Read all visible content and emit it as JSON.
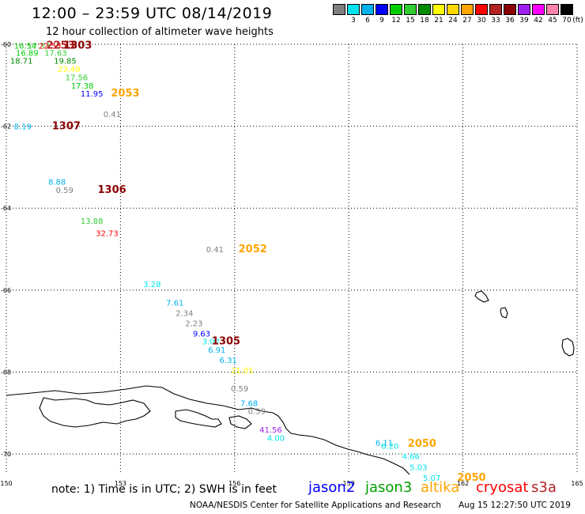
{
  "header": {
    "title": "12:00 – 23:59 UTC 08/14/2019",
    "subtitle": "12 hour collection of altimeter wave heights"
  },
  "legend": {
    "unit": "(ft)",
    "bins": [
      {
        "color": "#7f7f7f",
        "label": ""
      },
      {
        "color": "#00e5ee",
        "label": "3"
      },
      {
        "color": "#00b2ee",
        "label": "6"
      },
      {
        "color": "#0000ff",
        "label": "9"
      },
      {
        "color": "#00cd00",
        "label": "12"
      },
      {
        "color": "#32cd32",
        "label": "15"
      },
      {
        "color": "#008b00",
        "label": "18"
      },
      {
        "color": "#ffff00",
        "label": "21"
      },
      {
        "color": "#ffd700",
        "label": "24"
      },
      {
        "color": "#ffa500",
        "label": "27"
      },
      {
        "color": "#ff0000",
        "label": "30"
      },
      {
        "color": "#b22222",
        "label": "33"
      },
      {
        "color": "#8b0000",
        "label": "36"
      },
      {
        "color": "#a020f0",
        "label": "39"
      },
      {
        "color": "#ff00ff",
        "label": "42"
      },
      {
        "color": "#ff82ab",
        "label": "45"
      },
      {
        "color": "#000000",
        "label": "70"
      }
    ]
  },
  "axes": {
    "lon_labels": [
      "150",
      "153",
      "156",
      "159",
      "162",
      "165"
    ],
    "lat_labels": [
      "-60",
      "-62",
      "-64",
      "-66",
      "-68",
      "-70"
    ]
  },
  "wave_labels": [
    {
      "lon": 150.2,
      "lat": -60.03,
      "text": "16.54",
      "color": "#00cd00"
    },
    {
      "lon": 150.55,
      "lat": -60.03,
      "text": "17.33",
      "color": "#32cd32"
    },
    {
      "lon": 150.85,
      "lat": -60.03,
      "text": "22.53",
      "color": "#ff0000"
    },
    {
      "lon": 151.05,
      "lat": -60.03,
      "text": "2253",
      "color": "#b22222",
      "size": 13,
      "bold": true
    },
    {
      "lon": 151.5,
      "lat": -60.03,
      "text": "1303",
      "color": "#8b0000",
      "size": 13,
      "bold": true
    },
    {
      "lon": 150.25,
      "lat": -60.2,
      "text": "16.89",
      "color": "#00cd00"
    },
    {
      "lon": 151.0,
      "lat": -60.2,
      "text": "17.63",
      "color": "#32cd32"
    },
    {
      "lon": 150.1,
      "lat": -60.4,
      "text": "18.71",
      "color": "#008b00"
    },
    {
      "lon": 151.25,
      "lat": -60.4,
      "text": "19.85",
      "color": "#008b00"
    },
    {
      "lon": 151.35,
      "lat": -60.6,
      "text": "23.49",
      "color": "#ffff00"
    },
    {
      "lon": 151.55,
      "lat": -60.8,
      "text": "17.56",
      "color": "#32cd32"
    },
    {
      "lon": 151.7,
      "lat": -61.0,
      "text": "17.38",
      "color": "#00cd00"
    },
    {
      "lon": 151.95,
      "lat": -61.2,
      "text": "11.95",
      "color": "#0000ff"
    },
    {
      "lon": 152.75,
      "lat": -61.2,
      "text": "2053",
      "color": "#ffa500",
      "size": 13,
      "bold": true
    },
    {
      "lon": 152.55,
      "lat": -61.7,
      "text": "0.41",
      "color": "#7f7f7f"
    },
    {
      "lon": 150.2,
      "lat": -62.0,
      "text": "8.19",
      "color": "#00b2ee"
    },
    {
      "lon": 151.2,
      "lat": -62.0,
      "text": "1307",
      "color": "#8b0000",
      "size": 13,
      "bold": true
    },
    {
      "lon": 151.1,
      "lat": -63.35,
      "text": "8.88",
      "color": "#00b2ee"
    },
    {
      "lon": 151.3,
      "lat": -63.55,
      "text": "0.59",
      "color": "#7f7f7f"
    },
    {
      "lon": 152.4,
      "lat": -63.55,
      "text": "1306",
      "color": "#8b0000",
      "size": 13,
      "bold": true
    },
    {
      "lon": 151.95,
      "lat": -64.3,
      "text": "13.88",
      "color": "#32cd32"
    },
    {
      "lon": 152.35,
      "lat": -64.6,
      "text": "32.73",
      "color": "#ff0000"
    },
    {
      "lon": 155.25,
      "lat": -65.0,
      "text": "0.41",
      "color": "#7f7f7f"
    },
    {
      "lon": 156.1,
      "lat": -65.0,
      "text": "2052",
      "color": "#ffa500",
      "size": 13,
      "bold": true
    },
    {
      "lon": 153.6,
      "lat": -65.85,
      "text": "3.28",
      "color": "#00e5ee"
    },
    {
      "lon": 154.2,
      "lat": -66.3,
      "text": "7.61",
      "color": "#00b2ee"
    },
    {
      "lon": 154.45,
      "lat": -66.55,
      "text": "2.34",
      "color": "#7f7f7f"
    },
    {
      "lon": 154.7,
      "lat": -66.8,
      "text": "2.23",
      "color": "#7f7f7f"
    },
    {
      "lon": 154.9,
      "lat": -67.05,
      "text": "9.63",
      "color": "#0000ff"
    },
    {
      "lon": 155.15,
      "lat": -67.25,
      "text": "3.07",
      "color": "#00e5ee"
    },
    {
      "lon": 155.4,
      "lat": -67.25,
      "text": "1305",
      "color": "#8b0000",
      "size": 13,
      "bold": true
    },
    {
      "lon": 155.3,
      "lat": -67.45,
      "text": "6.91",
      "color": "#00b2ee"
    },
    {
      "lon": 155.6,
      "lat": -67.7,
      "text": "6.31",
      "color": "#00b2ee"
    },
    {
      "lon": 155.9,
      "lat": -67.95,
      "text": "21.01",
      "color": "#ffff00"
    },
    {
      "lon": 155.9,
      "lat": -68.4,
      "text": "0.59",
      "color": "#7f7f7f"
    },
    {
      "lon": 156.15,
      "lat": -68.75,
      "text": "7.68",
      "color": "#00b2ee"
    },
    {
      "lon": 156.35,
      "lat": -68.95,
      "text": "0.59",
      "color": "#7f7f7f"
    },
    {
      "lon": 156.65,
      "lat": -69.4,
      "text": "41.56",
      "color": "#a020f0"
    },
    {
      "lon": 156.85,
      "lat": -69.6,
      "text": "4.00",
      "color": "#00e5ee"
    },
    {
      "lon": 159.7,
      "lat": -69.72,
      "text": "6.11",
      "color": "#00b2ee"
    },
    {
      "lon": 159.85,
      "lat": -69.8,
      "text": "6.20",
      "color": "#00e5ee"
    },
    {
      "lon": 160.55,
      "lat": -69.75,
      "text": "2050",
      "color": "#ffa500",
      "size": 13,
      "bold": true
    },
    {
      "lon": 160.4,
      "lat": -70.05,
      "text": "4.66",
      "color": "#00e5ee"
    },
    {
      "lon": 160.6,
      "lat": -70.32,
      "text": "5.03",
      "color": "#00e5ee"
    },
    {
      "lon": 160.95,
      "lat": -70.58,
      "text": "5.07",
      "color": "#00e5ee"
    },
    {
      "lon": 161.85,
      "lat": -70.58,
      "text": "2050",
      "color": "#ffa500",
      "size": 13,
      "bold": true
    }
  ],
  "note": "note:  1) Time is in UTC; 2) SWH is in feet",
  "satellites": [
    {
      "name": "jason2",
      "color": "#0000ff"
    },
    {
      "name": "jason3",
      "color": "#00a000"
    },
    {
      "name": "altika",
      "color": "#ffa500"
    },
    {
      "name": "cryosat",
      "color": "#ff0000"
    },
    {
      "name": "s3a",
      "color": "#b22222"
    }
  ],
  "footer": {
    "credit": "NOAA/NESDIS Center for Satellite Applications and Research",
    "timestamp": "Aug 15 12:27:50 UTC 2019"
  }
}
